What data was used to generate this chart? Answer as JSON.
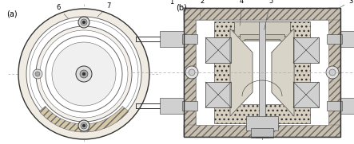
{
  "fig_width": 4.43,
  "fig_height": 1.81,
  "dpi": 100,
  "bg_color": "#ffffff",
  "lc": "#666666",
  "dc": "#333333",
  "hatch_fill": "#c8bfaf",
  "inner_fill": "#e8e4dc",
  "gray_light": "#d8d8d8",
  "gray_mid": "#b8b8b8",
  "gray_dark": "#888888",
  "label_fontsize": 7,
  "ann_fontsize": 6
}
